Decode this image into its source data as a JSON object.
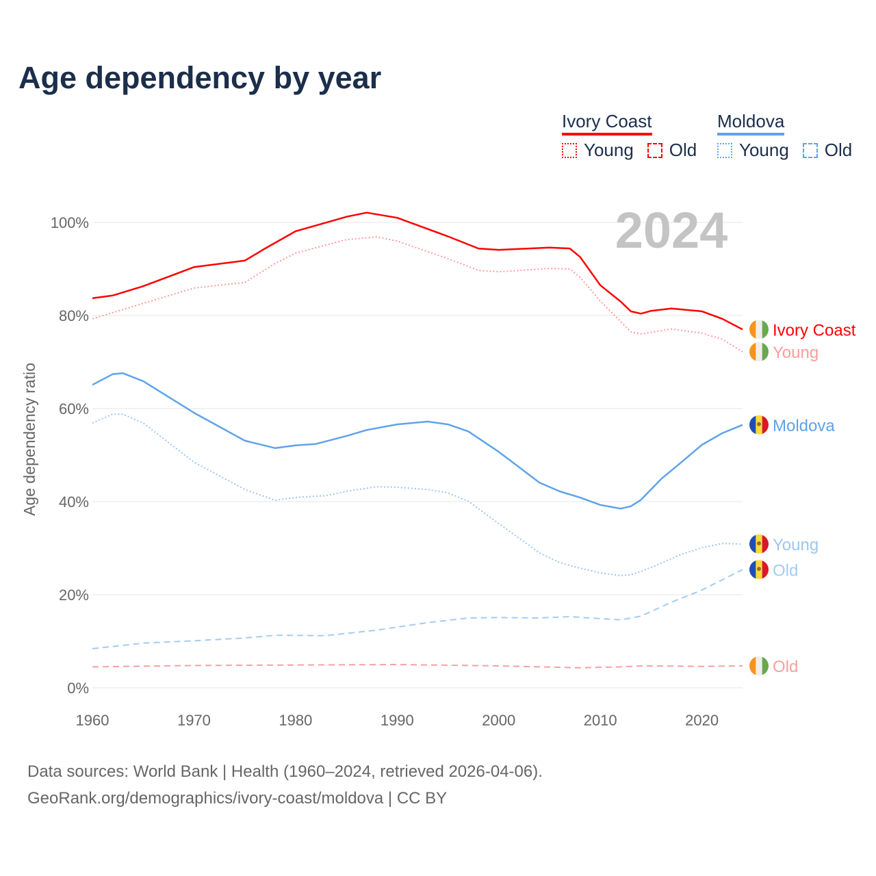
{
  "title": "Age dependency by year",
  "legend": {
    "countries": [
      {
        "name": "Ivory Coast",
        "color": "#ff0000",
        "young": "Young",
        "old": "Old"
      },
      {
        "name": "Moldova",
        "color": "#5ea3ea",
        "young": "Young",
        "old": "Old"
      }
    ]
  },
  "source": {
    "line1": "Data sources: World Bank | Health (1960–2024, retrieved 2026-04-06).",
    "line2": "GeoRank.org/demographics/ivory-coast/moldova | CC BY"
  },
  "chart_data": {
    "type": "line",
    "title": "Age dependency by year",
    "xlabel": "",
    "ylabel": "Age dependency ratio",
    "year_label": "2024",
    "xlim": [
      1960,
      2024
    ],
    "ylim": [
      0,
      100
    ],
    "xticks": [
      1960,
      1970,
      1980,
      1990,
      2000,
      2010,
      2020
    ],
    "yticks": [
      {
        "v": 0,
        "label": "0%"
      },
      {
        "v": 20,
        "label": "20%"
      },
      {
        "v": 40,
        "label": "40%"
      },
      {
        "v": 60,
        "label": "60%"
      },
      {
        "v": 80,
        "label": "80%"
      },
      {
        "v": 100,
        "label": "100%"
      }
    ],
    "grid": true,
    "series": [
      {
        "name": "Ivory Coast",
        "label": "Ivory Coast",
        "country": "ci",
        "color": "#ff0000",
        "dash": "solid",
        "points": [
          [
            1960,
            83.7
          ],
          [
            1962,
            84.3
          ],
          [
            1965,
            86.3
          ],
          [
            1970,
            90.4
          ],
          [
            1975,
            91.8
          ],
          [
            1977,
            94.4
          ],
          [
            1980,
            98.1
          ],
          [
            1985,
            101.2
          ],
          [
            1987,
            102.1
          ],
          [
            1990,
            101
          ],
          [
            1995,
            97
          ],
          [
            1998,
            94.4
          ],
          [
            2000,
            94.1
          ],
          [
            2005,
            94.6
          ],
          [
            2007,
            94.4
          ],
          [
            2008,
            92.6
          ],
          [
            2010,
            86.5
          ],
          [
            2012,
            83
          ],
          [
            2013,
            80.9
          ],
          [
            2014,
            80.4
          ],
          [
            2015,
            81
          ],
          [
            2017,
            81.5
          ],
          [
            2020,
            80.9
          ],
          [
            2022,
            79.3
          ],
          [
            2024,
            77
          ]
        ]
      },
      {
        "name": "Ivory Coast Young",
        "label": "Young",
        "country": "ci",
        "color": "#ff9a9a",
        "dash": "dotted",
        "points": [
          [
            1960,
            79.3
          ],
          [
            1965,
            82.6
          ],
          [
            1970,
            85.9
          ],
          [
            1975,
            87.1
          ],
          [
            1978,
            91.2
          ],
          [
            1980,
            93.4
          ],
          [
            1985,
            96.3
          ],
          [
            1988,
            96.9
          ],
          [
            1990,
            96
          ],
          [
            1995,
            92.2
          ],
          [
            1998,
            89.7
          ],
          [
            2000,
            89.4
          ],
          [
            2005,
            90.1
          ],
          [
            2007,
            90
          ],
          [
            2008,
            88.2
          ],
          [
            2010,
            83.1
          ],
          [
            2012,
            78.7
          ],
          [
            2013,
            76.5
          ],
          [
            2014,
            76
          ],
          [
            2017,
            77.1
          ],
          [
            2020,
            76.2
          ],
          [
            2022,
            74.9
          ],
          [
            2024,
            72.2
          ]
        ]
      },
      {
        "name": "Ivory Coast Old",
        "label": "Old",
        "country": "ci",
        "color": "#f7a0a0",
        "dash": "dashed",
        "points": [
          [
            1960,
            4.5
          ],
          [
            1970,
            4.8
          ],
          [
            1980,
            4.9
          ],
          [
            1990,
            5
          ],
          [
            2000,
            4.7
          ],
          [
            2008,
            4.3
          ],
          [
            2012,
            4.5
          ],
          [
            2014,
            4.7
          ],
          [
            2020,
            4.6
          ],
          [
            2024,
            4.7
          ]
        ]
      },
      {
        "name": "Moldova",
        "label": "Moldova",
        "country": "md",
        "color": "#5ea3ea",
        "dash": "solid",
        "points": [
          [
            1960,
            65.1
          ],
          [
            1962,
            67.4
          ],
          [
            1963,
            67.6
          ],
          [
            1965,
            65.9
          ],
          [
            1970,
            59.1
          ],
          [
            1975,
            53.1
          ],
          [
            1978,
            51.5
          ],
          [
            1980,
            52.1
          ],
          [
            1982,
            52.4
          ],
          [
            1985,
            54.1
          ],
          [
            1987,
            55.4
          ],
          [
            1990,
            56.6
          ],
          [
            1993,
            57.2
          ],
          [
            1995,
            56.6
          ],
          [
            1997,
            55.1
          ],
          [
            2000,
            50.7
          ],
          [
            2004,
            44.1
          ],
          [
            2006,
            42.2
          ],
          [
            2008,
            40.9
          ],
          [
            2010,
            39.3
          ],
          [
            2012,
            38.5
          ],
          [
            2013,
            39
          ],
          [
            2014,
            40.4
          ],
          [
            2016,
            44.9
          ],
          [
            2018,
            48.5
          ],
          [
            2020,
            52.2
          ],
          [
            2022,
            54.7
          ],
          [
            2024,
            56.5
          ]
        ]
      },
      {
        "name": "Moldova Young",
        "label": "Young",
        "country": "md",
        "color": "#9cc6f0",
        "dash": "dotted",
        "points": [
          [
            1960,
            56.9
          ],
          [
            1962,
            58.8
          ],
          [
            1963,
            58.8
          ],
          [
            1965,
            56.9
          ],
          [
            1970,
            48.5
          ],
          [
            1975,
            42.6
          ],
          [
            1978,
            40.3
          ],
          [
            1980,
            40.9
          ],
          [
            1983,
            41.3
          ],
          [
            1985,
            42.2
          ],
          [
            1988,
            43.2
          ],
          [
            1990,
            43.1
          ],
          [
            1993,
            42.6
          ],
          [
            1995,
            41.9
          ],
          [
            1997,
            40.1
          ],
          [
            2000,
            35.3
          ],
          [
            2004,
            29
          ],
          [
            2006,
            26.9
          ],
          [
            2008,
            25.7
          ],
          [
            2010,
            24.7
          ],
          [
            2012,
            24.1
          ],
          [
            2013,
            24.3
          ],
          [
            2014,
            25
          ],
          [
            2016,
            26.8
          ],
          [
            2018,
            28.7
          ],
          [
            2020,
            30.1
          ],
          [
            2022,
            31
          ],
          [
            2024,
            30.9
          ]
        ]
      },
      {
        "name": "Moldova Old",
        "label": "Old",
        "country": "md",
        "color": "#a4cbf2",
        "dash": "dashed",
        "points": [
          [
            1960,
            8.4
          ],
          [
            1965,
            9.6
          ],
          [
            1970,
            10.1
          ],
          [
            1975,
            10.7
          ],
          [
            1978,
            11.3
          ],
          [
            1983,
            11.2
          ],
          [
            1988,
            12.4
          ],
          [
            1993,
            14
          ],
          [
            1997,
            15
          ],
          [
            2000,
            15.1
          ],
          [
            2004,
            15
          ],
          [
            2007,
            15.3
          ],
          [
            2009,
            15
          ],
          [
            2012,
            14.6
          ],
          [
            2014,
            15.4
          ],
          [
            2017,
            18.4
          ],
          [
            2020,
            21
          ],
          [
            2024,
            25.4
          ]
        ]
      }
    ]
  }
}
